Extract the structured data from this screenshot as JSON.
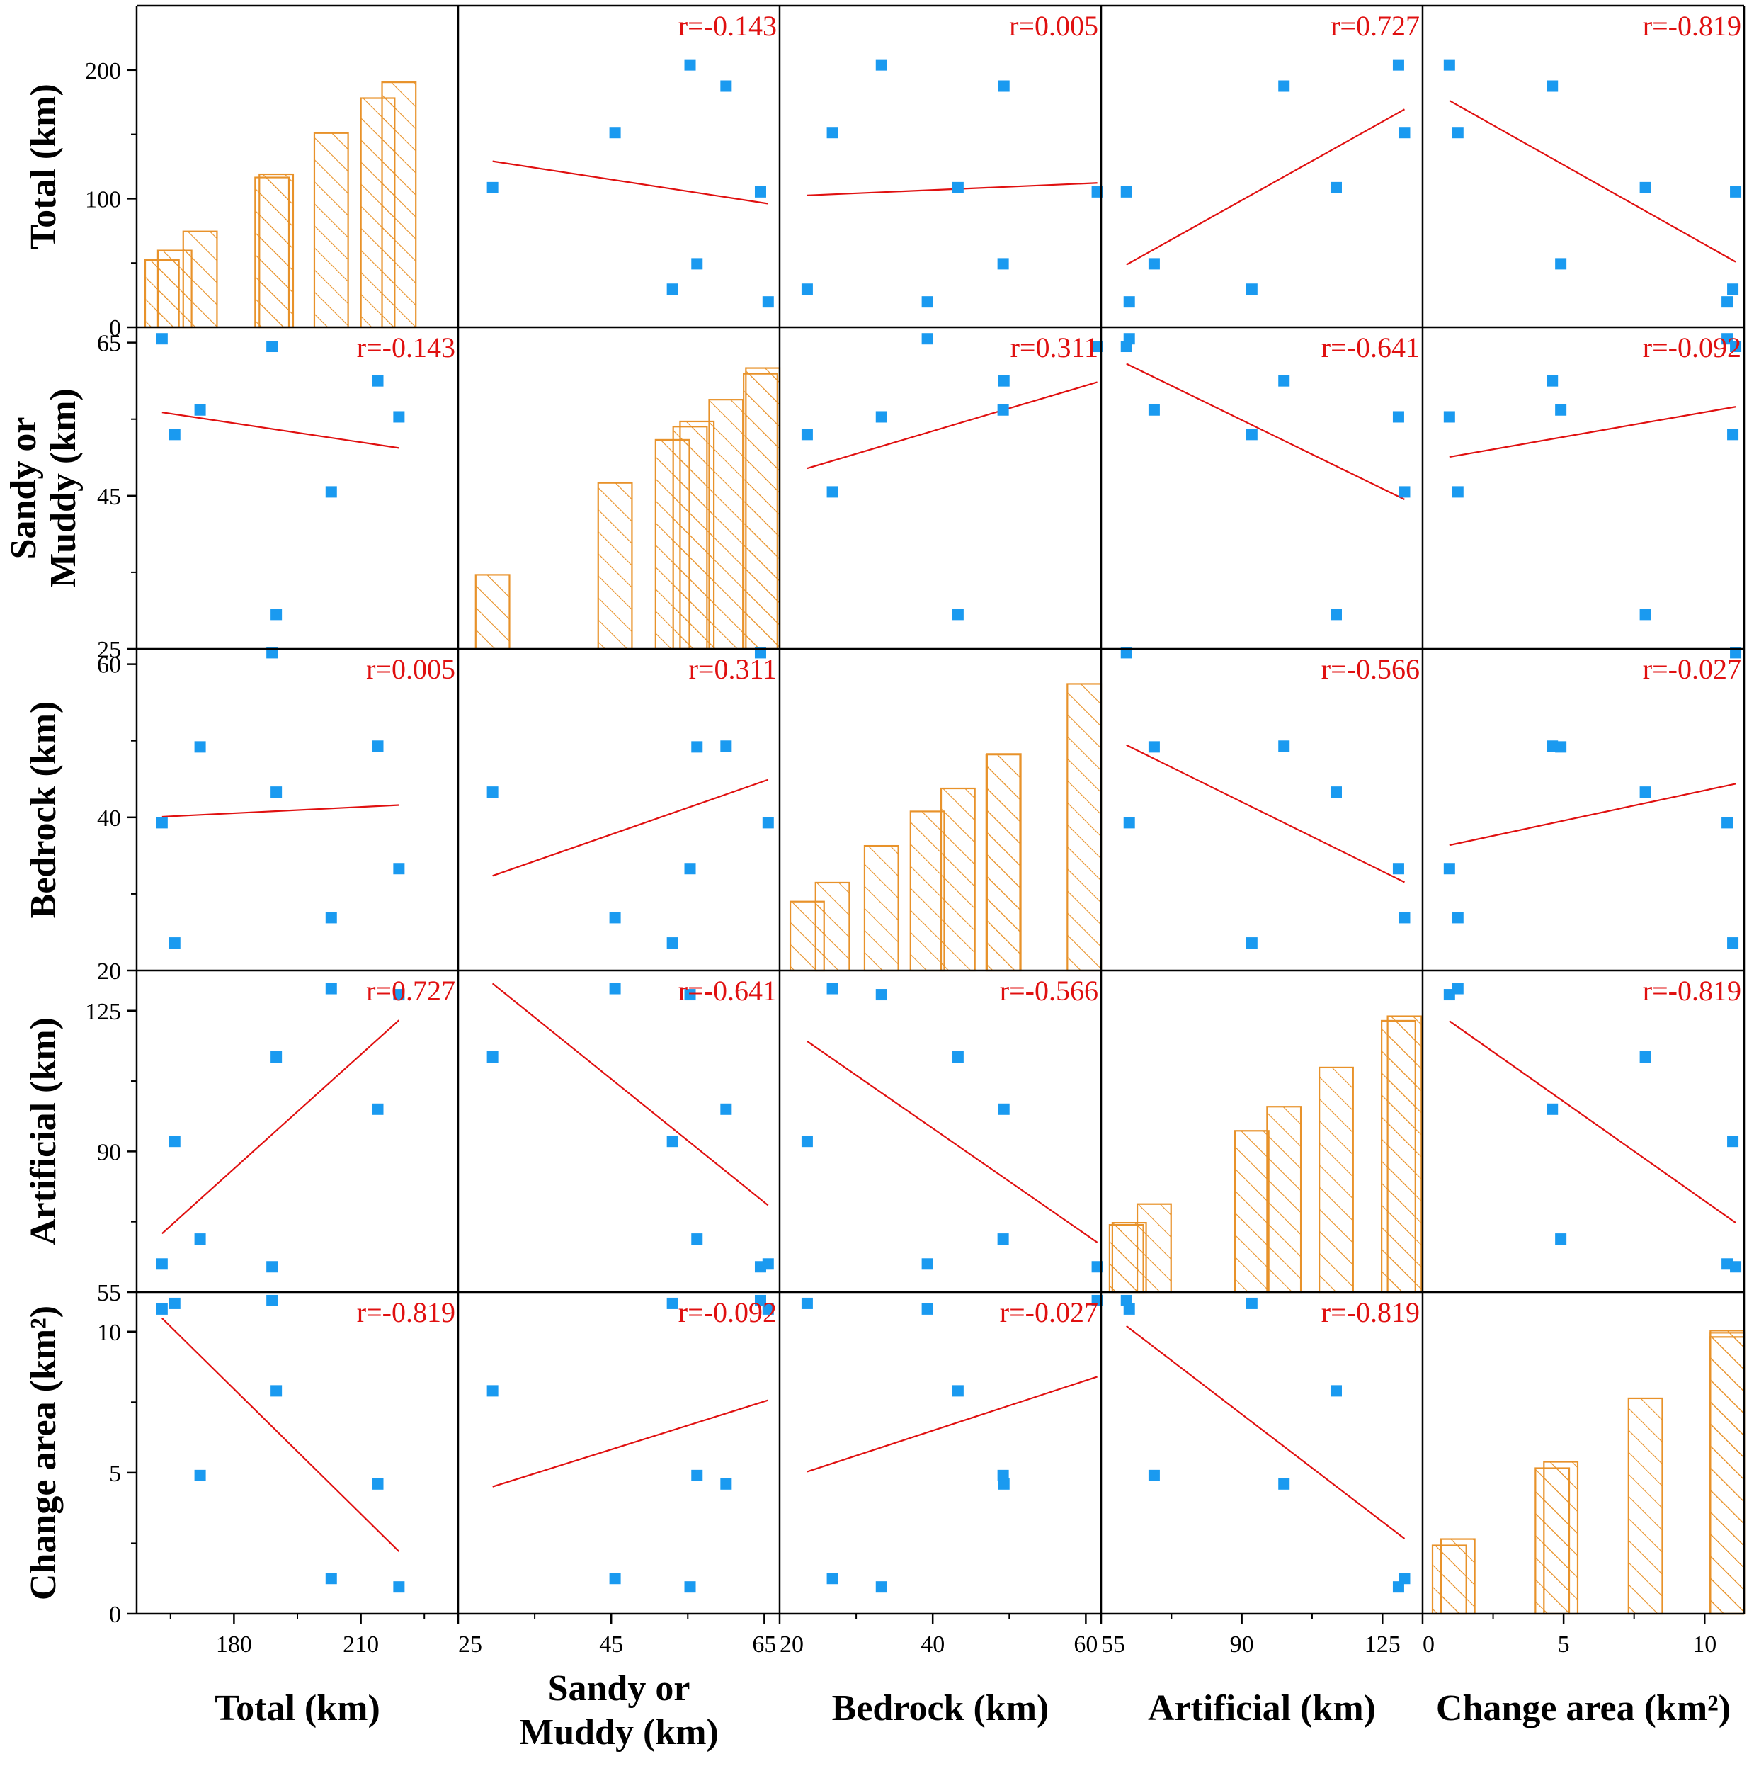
{
  "chart_data": {
    "type": "scatter-matrix",
    "title": "",
    "variables": [
      {
        "name": "total",
        "label_lines": [
          "Total (km)"
        ],
        "range": [
          157,
          233
        ],
        "ticks": [
          180,
          210
        ],
        "minor_ticks": [
          165,
          195,
          225
        ]
      },
      {
        "name": "sandy",
        "label_lines": [
          "Sandy or",
          "Muddy (km)"
        ],
        "range": [
          25,
          67
        ],
        "ticks": [
          25,
          45,
          65
        ],
        "minor_ticks": [
          35,
          55
        ]
      },
      {
        "name": "bedrock",
        "label_lines": [
          "Bedrock (km)"
        ],
        "range": [
          20,
          62
        ],
        "ticks": [
          20,
          40,
          60
        ],
        "minor_ticks": [
          30,
          50
        ]
      },
      {
        "name": "artificial",
        "label_lines": [
          "Artificial (km)"
        ],
        "range": [
          55,
          135
        ],
        "ticks": [
          55,
          90,
          125
        ],
        "minor_ticks": [
          72.5,
          107.5
        ]
      },
      {
        "name": "change_area",
        "label_lines": [
          "Change area (km²)"
        ],
        "range": [
          0,
          11.4
        ],
        "ticks": [
          0,
          5,
          10
        ],
        "minor_ticks": [
          2.5,
          7.5
        ]
      }
    ],
    "diagonal": {
      "type": "histogram",
      "ylim": [
        0,
        250
      ],
      "y_ticks": [
        0,
        100,
        200
      ],
      "y_minor_ticks": [
        50,
        150
      ]
    },
    "observations": [
      {
        "total": 163,
        "sandy": 65.5,
        "bedrock": 39.3,
        "artificial": 62,
        "change_area": 10.8
      },
      {
        "total": 166,
        "sandy": 53,
        "bedrock": 23.6,
        "artificial": 92.5,
        "change_area": 11.0
      },
      {
        "total": 172,
        "sandy": 56.2,
        "bedrock": 49.2,
        "artificial": 68.2,
        "change_area": 4.9
      },
      {
        "total": 189,
        "sandy": 64.5,
        "bedrock": 61.5,
        "artificial": 61.3,
        "change_area": 11.1
      },
      {
        "total": 190,
        "sandy": 29.5,
        "bedrock": 43.3,
        "artificial": 113.5,
        "change_area": 7.9
      },
      {
        "total": 203,
        "sandy": 45.5,
        "bedrock": 26.9,
        "artificial": 130.5,
        "change_area": 1.25
      },
      {
        "total": 214,
        "sandy": 60,
        "bedrock": 49.3,
        "artificial": 100.5,
        "change_area": 4.6
      },
      {
        "total": 219,
        "sandy": 55.3,
        "bedrock": 33.3,
        "artificial": 129,
        "change_area": 0.95
      }
    ],
    "correlations": [
      [
        null,
        "r=-0.143",
        "r=0.005",
        "r=0.727",
        "r=-0.819"
      ],
      [
        "r=-0.143",
        null,
        "r=0.311",
        "r=-0.641",
        "r=-0.092"
      ],
      [
        "r=0.005",
        "r=0.311",
        null,
        "r=-0.566",
        "r=-0.027"
      ],
      [
        "r=0.727",
        "r=-0.641",
        "r=-0.566",
        null,
        "r=-0.819"
      ],
      [
        "r=-0.819",
        "r=-0.092",
        "r=-0.027",
        "r=-0.819",
        null
      ]
    ],
    "colors": {
      "points": "#1a9af0",
      "fit_line": "#e01010",
      "correlation_text": "#e01010",
      "bars": "#e8922a",
      "axes": "#000000"
    }
  }
}
